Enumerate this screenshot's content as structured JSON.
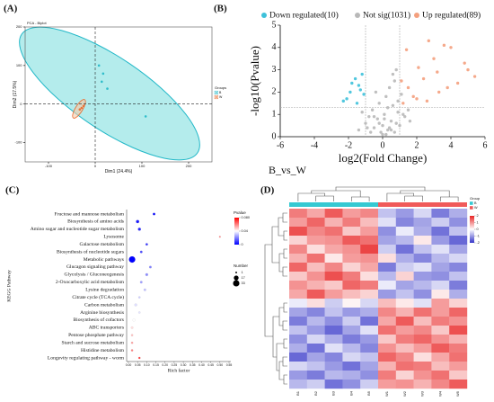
{
  "panels": [
    "(A)",
    "(B)",
    "(C)",
    "(D)"
  ],
  "chart_data": [
    {
      "type": "scatter",
      "title": "PCA - Biplot",
      "x_label": "Dim1 (24.4%)",
      "y_label": "Dim2 (17.5%)",
      "xlim": [
        -150,
        250
      ],
      "ylim": [
        -150,
        200
      ],
      "xticks": [
        -100,
        0,
        100,
        200
      ],
      "yticks": [
        -100,
        0,
        100,
        200
      ],
      "vlines": [
        0
      ],
      "hlines": [
        0
      ],
      "legend_title": "Groups",
      "series": [
        {
          "name": "B",
          "color": "#22b8c8",
          "x": [
            17,
            26,
            14,
            8,
            108
          ],
          "y": [
            79,
            40,
            58,
            100,
            -32
          ]
        },
        {
          "name": "W",
          "color": "#e8692c",
          "x": [
            -33,
            -25,
            -29
          ],
          "y": [
            -14,
            -5,
            -10
          ]
        }
      ]
    },
    {
      "type": "scatter",
      "title": "B_vs_W",
      "x_label": "log2(Fold Change)",
      "y_label": "-log10(Pvalue)",
      "xlim": [
        -6,
        6
      ],
      "ylim": [
        0,
        5
      ],
      "xticks": [
        -6,
        -4,
        -2,
        0,
        2,
        4,
        6
      ],
      "yticks": [
        0,
        1,
        2,
        3,
        4,
        5
      ],
      "vlines": [
        -1,
        1
      ],
      "hlines": [
        1.3
      ],
      "series": [
        {
          "name": "Down regulated(10)",
          "color": "#3ec1da",
          "x": [
            -2.3,
            -1.9,
            -1.6,
            -1.4,
            -1.2,
            -1.1,
            -2.1,
            -1.5,
            -1.3,
            -1.8
          ],
          "y": [
            1.6,
            2.0,
            2.6,
            2.3,
            2.8,
            1.9,
            1.7,
            1.5,
            2.1,
            2.4
          ]
        },
        {
          "name": "Not sig(1031)",
          "color": "#b8b8b8",
          "x": [
            -1.4,
            -1.0,
            -0.8,
            -0.6,
            -0.5,
            -0.3,
            -0.2,
            -0.1,
            0,
            0.1,
            0.2,
            0.3,
            0.4,
            0.5,
            0.6,
            0.7,
            0.8,
            0.9,
            1.0,
            1.1,
            -0.7,
            -0.4,
            0.2,
            0.5,
            0.8,
            1.3,
            1.6,
            -0.9,
            0.3,
            0.6,
            0.0,
            -0.2,
            0.4,
            0.9,
            1.2,
            -0.5,
            0.7,
            1.5,
            0.1,
            -1.2
          ],
          "y": [
            0.3,
            0.6,
            0.9,
            1.2,
            0.4,
            0.8,
            1.5,
            0.2,
            0.5,
            1.0,
            1.8,
            0.3,
            2.2,
            0.7,
            1.4,
            2.5,
            3.0,
            1.1,
            0.5,
            1.9,
            0.2,
            2.0,
            0.1,
            0.3,
            0.6,
            0.9,
            0.7,
            0.4,
            1.3,
            2.8,
            0.1,
            0.6,
            0.4,
            1.6,
            1.0,
            0.9,
            0.2,
            1.2,
            0.8,
            1.1
          ]
        },
        {
          "name": "Up regulated(89)",
          "color": "#f4a07e",
          "x": [
            1.2,
            1.5,
            1.8,
            2.1,
            2.4,
            2.7,
            3.0,
            3.3,
            3.6,
            4.0,
            4.4,
            5.0,
            5.4,
            1.4,
            2.0,
            2.6,
            3.2,
            3.8,
            1.1,
            4.8
          ],
          "y": [
            1.5,
            2.2,
            1.8,
            3.1,
            2.6,
            4.3,
            3.5,
            2.0,
            4.1,
            4.0,
            2.4,
            3.0,
            2.7,
            3.9,
            1.7,
            1.6,
            2.9,
            2.2,
            2.5,
            3.3
          ]
        }
      ]
    },
    {
      "type": "dot",
      "x_label": "Rich factor",
      "y_label": "KEGG Pathway",
      "categories": [
        "Fructose and mannose metabolism",
        "Biosynthesis of amino acids",
        "Amino sugar and nucleotide sugar metabolism",
        "Lysosome",
        "Galactose metabolism",
        "Biosynthesis of nucleotide sugars",
        "Metabolic pathways",
        "Glucagon signaling pathway",
        "Glycolysis / Gluconeogenesis",
        "2-Oxocarboxylic acid metabolism",
        "Lysine degradation",
        "Citrate cycle (TCA cycle)",
        "Carbon metabolism",
        "Arginine biosynthesis",
        "Biosynthesis of cofactors",
        "ABC transporters",
        "Pentose phosphate pathway",
        "Starch and sucrose metabolism",
        "Histidine metabolism",
        "Longevity regulating pathway - worm"
      ],
      "values": [
        0.14,
        0.05,
        0.06,
        0.5,
        0.1,
        0.07,
        0.02,
        0.12,
        0.1,
        0.07,
        0.09,
        0.06,
        0.04,
        0.06,
        0.03,
        0.02,
        0.02,
        0.02,
        0.02,
        0.06
      ],
      "counts": [
        3,
        6,
        5,
        1,
        3,
        3,
        33,
        3,
        4,
        3,
        3,
        2,
        4,
        2,
        4,
        3,
        2,
        2,
        2,
        2
      ],
      "pvalues": [
        0.001,
        0.004,
        0.006,
        0.06,
        0.01,
        0.012,
        0.0001,
        0.02,
        0.022,
        0.025,
        0.03,
        0.032,
        0.035,
        0.036,
        0.04,
        0.045,
        0.05,
        0.055,
        0.06,
        0.07
      ],
      "xlim": [
        0,
        0.55
      ],
      "xticks": [
        {
          "value": 0,
          "label": "0.00"
        },
        {
          "value": 0.05,
          "label": "0.05"
        },
        {
          "value": 0.1,
          "label": "0.10"
        },
        {
          "value": 0.15,
          "label": "0.15"
        },
        {
          "value": 0.2,
          "label": "0.20"
        },
        {
          "value": 0.25,
          "label": "0.25"
        },
        {
          "value": 0.3,
          "label": "0.30"
        },
        {
          "value": 0.35,
          "label": "0.35"
        },
        {
          "value": 0.4,
          "label": "0.40"
        },
        {
          "value": 0.45,
          "label": "0.45"
        },
        {
          "value": 0.5,
          "label": "0.50"
        },
        {
          "value": 0.55,
          "label": "0.55"
        }
      ],
      "color_title": "Pvalue",
      "clim": [
        0,
        0.08
      ],
      "colors": [
        "#0000ff",
        "#ffffff",
        "#ff0000"
      ],
      "cticks": [
        {
          "value": 0.08,
          "label": "0.080"
        },
        0.04,
        0
      ],
      "size_title": "Number",
      "size_ticks": [
        1,
        17,
        33
      ]
    },
    {
      "type": "heatmap",
      "columns": [
        "B1",
        "B2",
        "B3",
        "B4",
        "B5",
        "W1",
        "W2",
        "W3",
        "W4",
        "W5"
      ],
      "legend_title": "Group",
      "groups": [
        {
          "name": "B",
          "color": "#35c9d2",
          "count": 5
        },
        {
          "name": "W",
          "color": "#f05a5a",
          "count": 5
        }
      ],
      "clim": [
        -2,
        2
      ],
      "cticks": [
        -2,
        -1,
        0,
        1,
        2
      ],
      "colors": [
        "#3535c8",
        "#ffffff",
        "#e82424"
      ],
      "values": [
        [
          1.2,
          0.8,
          1.5,
          0.9,
          1.1,
          -0.6,
          -1.0,
          -0.4,
          -1.3,
          -0.8
        ],
        [
          0.9,
          1.4,
          0.7,
          1.2,
          0.6,
          -0.3,
          -1.2,
          -0.9,
          -0.5,
          -1.1
        ],
        [
          1.6,
          1.1,
          1.3,
          0.5,
          0.9,
          -1.1,
          -0.2,
          -0.8,
          -1.4,
          -0.6
        ],
        [
          0.4,
          0.9,
          1.0,
          1.5,
          1.3,
          -0.9,
          -0.7,
          0.2,
          -1.0,
          -1.5
        ],
        [
          1.1,
          0.3,
          0.8,
          1.0,
          1.7,
          -0.5,
          -1.4,
          -0.6,
          -0.3,
          -0.9
        ],
        [
          0.7,
          1.3,
          0.2,
          0.9,
          1.0,
          0.3,
          -0.8,
          -1.2,
          -0.7,
          -0.4
        ],
        [
          1.4,
          0.6,
          1.1,
          0.4,
          0.8,
          -1.3,
          -0.5,
          -0.3,
          -0.9,
          -1.2
        ],
        [
          0.5,
          1.0,
          1.6,
          1.2,
          0.3,
          -0.7,
          0.4,
          -1.0,
          -1.1,
          -0.6
        ],
        [
          1.0,
          0.7,
          0.5,
          1.4,
          1.2,
          -0.2,
          -0.9,
          -0.7,
          -0.4,
          -1.3
        ],
        [
          0.8,
          1.5,
          0.9,
          0.6,
          0.4,
          -1.0,
          -0.6,
          -1.1,
          0.2,
          -0.8
        ],
        [
          -0.2,
          0.3,
          -0.5,
          0.1,
          -0.4,
          0.6,
          0.2,
          -0.3,
          0.9,
          0.4
        ],
        [
          -0.9,
          -1.2,
          -0.6,
          -1.0,
          -0.8,
          1.1,
          0.7,
          1.3,
          0.9,
          1.4
        ],
        [
          -1.3,
          -0.7,
          -1.1,
          -0.5,
          -1.4,
          0.8,
          1.5,
          0.6,
          1.2,
          1.0
        ],
        [
          -0.6,
          -1.0,
          -1.5,
          -0.9,
          -0.3,
          1.3,
          0.9,
          1.1,
          0.5,
          1.6
        ],
        [
          -1.1,
          -0.4,
          -0.8,
          -1.3,
          -1.0,
          0.5,
          1.2,
          1.4,
          1.0,
          0.7
        ],
        [
          -0.8,
          -1.4,
          -0.3,
          -0.7,
          -1.2,
          1.0,
          0.6,
          0.9,
          1.5,
          1.2
        ],
        [
          -1.5,
          -0.9,
          -1.2,
          -0.4,
          -0.6,
          1.4,
          1.1,
          0.3,
          0.8,
          1.3
        ],
        [
          -0.4,
          -0.6,
          -1.0,
          -1.4,
          -0.9,
          0.7,
          1.3,
          1.2,
          0.6,
          0.9
        ],
        [
          -1.0,
          -1.3,
          -0.7,
          -0.8,
          -1.1,
          1.2,
          0.4,
          1.0,
          1.3,
          0.5
        ],
        [
          -0.7,
          -0.5,
          -1.4,
          -1.1,
          -0.5,
          0.9,
          1.0,
          0.7,
          1.1,
          1.5
        ]
      ]
    }
  ]
}
